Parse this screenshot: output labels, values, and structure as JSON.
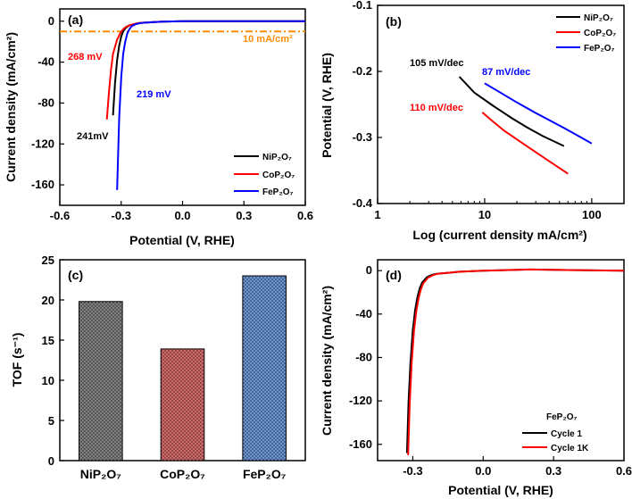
{
  "colors": {
    "ni": "#000000",
    "co": "#ff0000",
    "fe": "#0000ff",
    "ref": "#ff8c00",
    "cycle1": "#000000",
    "cycle1k": "#ff0000"
  },
  "chart_data": [
    {
      "panel": "(a)",
      "type": "line",
      "xlabel": "Potential (V, RHE)",
      "ylabel": "Current density (mA/cm²)",
      "xlim": [
        -0.6,
        0.6
      ],
      "ylim": [
        -180,
        12
      ],
      "xticks": [
        "-0.6",
        "-0.3",
        "0.0",
        "0.3",
        "0.6"
      ],
      "yticks": [
        "0",
        "-40",
        "-80",
        "-120",
        "-160"
      ],
      "series": [
        {
          "name": "NiP2O7",
          "color": "#000000",
          "x": [
            -0.34,
            -0.33,
            -0.32,
            -0.31,
            -0.3,
            -0.29,
            -0.28,
            -0.26,
            -0.24,
            -0.22,
            -0.2,
            -0.15,
            -0.1,
            0.0,
            0.3,
            0.6
          ],
          "y": [
            -92,
            -60,
            -38,
            -24,
            -15,
            -10,
            -7,
            -4,
            -3,
            -2,
            -1.5,
            -1,
            -0.5,
            0,
            0,
            0
          ]
        },
        {
          "name": "CoP2O7",
          "color": "#ff0000",
          "x": [
            -0.37,
            -0.36,
            -0.35,
            -0.34,
            -0.32,
            -0.3,
            -0.28,
            -0.26,
            -0.24,
            -0.22,
            -0.2,
            -0.15,
            -0.1,
            0.0,
            0.3,
            0.6
          ],
          "y": [
            -96,
            -70,
            -48,
            -32,
            -18,
            -10,
            -6,
            -4,
            -3,
            -2,
            -1.5,
            -1,
            -0.5,
            0,
            0,
            0
          ]
        },
        {
          "name": "FeP2O7",
          "color": "#0000ff",
          "x": [
            -0.32,
            -0.31,
            -0.3,
            -0.29,
            -0.28,
            -0.27,
            -0.26,
            -0.25,
            -0.23,
            -0.21,
            -0.19,
            -0.15,
            -0.1,
            0.0,
            0.3,
            0.6
          ],
          "y": [
            -165,
            -95,
            -55,
            -32,
            -20,
            -12,
            -8,
            -5,
            -3,
            -2,
            -1.5,
            -1,
            -0.5,
            0,
            0,
            0
          ]
        }
      ],
      "reference_line": {
        "label": "10 mA/cm²",
        "y": -10,
        "color": "#ff8c00"
      },
      "annotations": [
        "268 mV",
        "219 mV",
        "241mV"
      ],
      "legend": [
        "NiP₂O₇",
        "CoP₂O₇",
        "FeP₂O₇"
      ]
    },
    {
      "panel": "(b)",
      "type": "line",
      "xscale": "log",
      "xlabel": "Log (current density mA/cm²)",
      "ylabel": "Potential (V, RHE)",
      "xlim": [
        1,
        200
      ],
      "ylim": [
        -0.4,
        -0.1
      ],
      "xticks": [
        "1",
        "10",
        "100"
      ],
      "yticks": [
        "-0.1",
        "-0.2",
        "-0.3",
        "-0.4"
      ],
      "series": [
        {
          "name": "NiP2O7",
          "color": "#000000",
          "x": [
            5.8,
            8,
            12,
            18,
            25,
            35,
            55
          ],
          "y": [
            -0.208,
            -0.232,
            -0.252,
            -0.271,
            -0.285,
            -0.298,
            -0.313
          ]
        },
        {
          "name": "CoP2O7",
          "color": "#ff0000",
          "x": [
            9.5,
            12,
            15,
            20,
            28,
            40,
            60
          ],
          "y": [
            -0.262,
            -0.276,
            -0.289,
            -0.303,
            -0.319,
            -0.336,
            -0.355
          ]
        },
        {
          "name": "FeP2O7",
          "color": "#0000ff",
          "x": [
            10,
            14,
            20,
            30,
            45,
            65,
            100
          ],
          "y": [
            -0.218,
            -0.232,
            -0.247,
            -0.263,
            -0.278,
            -0.292,
            -0.309
          ]
        }
      ],
      "annotations": [
        "105 mV/dec",
        "87 mV/dec",
        "110 mV/dec"
      ],
      "legend": [
        "NiP₂O₇",
        "CoP₂O₇",
        "FeP₂O₇"
      ]
    },
    {
      "panel": "(c)",
      "type": "bar",
      "ylabel": "TOF (s⁻¹)",
      "categories": [
        "NiP₂O₇",
        "CoP₂O₇",
        "FeP₂O₇"
      ],
      "values": [
        19.8,
        13.9,
        23.0
      ],
      "bar_colors": [
        "#808080",
        "#d26a6a",
        "#6a95d2"
      ],
      "ylim": [
        0,
        25
      ],
      "yticks": [
        "0",
        "5",
        "10",
        "15",
        "20",
        "25"
      ]
    },
    {
      "panel": "(d)",
      "type": "line",
      "xlabel": "Potential (V, RHE)",
      "ylabel": "Current density (mA/cm²)",
      "xlim": [
        -0.45,
        0.6
      ],
      "ylim": [
        -175,
        10
      ],
      "xticks": [
        "-0.3",
        "0.0",
        "0.3",
        "0.6"
      ],
      "yticks": [
        "0",
        "-40",
        "-80",
        "-120",
        "-160"
      ],
      "series": [
        {
          "name": "Cycle 1",
          "color": "#000000",
          "x": [
            -0.325,
            -0.318,
            -0.31,
            -0.3,
            -0.29,
            -0.28,
            -0.27,
            -0.26,
            -0.24,
            -0.22,
            -0.2,
            -0.15,
            -0.1,
            0.0,
            0.2,
            0.4,
            0.6
          ],
          "y": [
            -168,
            -120,
            -85,
            -55,
            -36,
            -24,
            -16,
            -11,
            -6,
            -4,
            -3,
            -2,
            -1,
            0,
            1,
            0.5,
            0
          ]
        },
        {
          "name": "Cycle 1K",
          "color": "#ff0000",
          "x": [
            -0.32,
            -0.313,
            -0.305,
            -0.295,
            -0.285,
            -0.275,
            -0.265,
            -0.255,
            -0.235,
            -0.215,
            -0.195,
            -0.15,
            -0.1,
            0.0,
            0.2,
            0.4,
            0.6
          ],
          "y": [
            -170,
            -122,
            -86,
            -56,
            -37,
            -25,
            -17,
            -11.5,
            -6.5,
            -4.2,
            -3,
            -2,
            -1,
            0,
            1,
            0.5,
            0
          ]
        }
      ],
      "legend_title": "FeP₂O₇",
      "legend": [
        "Cycle 1",
        "Cycle 1K"
      ]
    }
  ]
}
